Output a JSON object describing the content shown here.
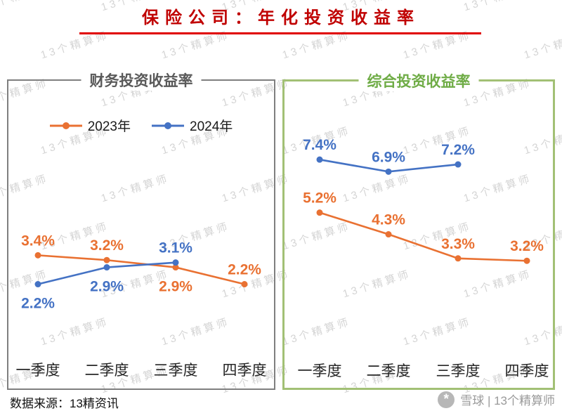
{
  "page": {
    "title": "保险公司：年化投资收益率",
    "source": "数据来源：13精资讯",
    "footer_brand": "雪球 | 13个精算师",
    "watermark": "13个精算师"
  },
  "colors": {
    "orange": "#E97132",
    "blue": "#4472C4",
    "title_red": "#C00000",
    "green_title": "#6FAC46",
    "panel_gray_border": "#7F7F7F",
    "panel_green_border": "#A2C075"
  },
  "legend": [
    {
      "label": "2023年",
      "color": "#E97132"
    },
    {
      "label": "2024年",
      "color": "#4472C4"
    }
  ],
  "chart_data": [
    {
      "type": "line",
      "title": "财务投资收益率",
      "unit": "%",
      "categories": [
        "一季度",
        "二季度",
        "三季度",
        "四季度"
      ],
      "series": [
        {
          "name": "2023年",
          "color": "#E97132",
          "values": [
            3.4,
            3.2,
            2.9,
            2.2
          ],
          "label_pos": [
            "above",
            "above",
            "below",
            "above"
          ]
        },
        {
          "name": "2024年",
          "color": "#4472C4",
          "values": [
            2.2,
            2.9,
            3.1,
            null
          ],
          "label_pos": [
            "below",
            "below",
            "above",
            null
          ]
        }
      ],
      "ylim": [
        0,
        10
      ],
      "grid": false,
      "legend_position": "top-inside"
    },
    {
      "type": "line",
      "title": "综合投资收益率",
      "unit": "%",
      "categories": [
        "一季度",
        "二季度",
        "三季度",
        "四季度"
      ],
      "series": [
        {
          "name": "2023年",
          "color": "#E97132",
          "values": [
            5.2,
            4.3,
            3.3,
            3.2
          ],
          "label_pos": [
            "above",
            "above",
            "above",
            "above"
          ]
        },
        {
          "name": "2024年",
          "color": "#4472C4",
          "values": [
            7.4,
            6.9,
            7.2,
            null
          ],
          "label_pos": [
            "above",
            "above",
            "above",
            null
          ]
        }
      ],
      "ylim": [
        0,
        10
      ],
      "grid": false,
      "legend_position": "none"
    }
  ]
}
